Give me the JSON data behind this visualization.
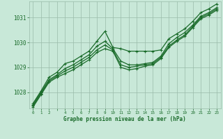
{
  "title": "Graphe pression niveau de la mer (hPa)",
  "bg_color": "#c8e8d8",
  "plot_bg_color": "#c8e8d8",
  "grid_color": "#99bbaa",
  "line_color": "#1a6b2a",
  "xlim": [
    -0.5,
    23.5
  ],
  "ylim": [
    1027.35,
    1031.65
  ],
  "yticks": [
    1028,
    1029,
    1030,
    1031
  ],
  "xticks": [
    0,
    1,
    2,
    3,
    4,
    5,
    6,
    7,
    8,
    9,
    10,
    11,
    12,
    13,
    14,
    15,
    16,
    17,
    18,
    19,
    20,
    21,
    22,
    23
  ],
  "xtick_labels": [
    "0",
    "1",
    "2",
    "",
    "4",
    "5",
    "6",
    "7",
    "8",
    "9",
    "10",
    "11",
    "12",
    "13",
    "14",
    "15",
    "16",
    "17",
    "18",
    "19",
    "20",
    "21",
    "22",
    "23"
  ],
  "series": [
    [
      1027.55,
      1028.05,
      1028.6,
      1028.8,
      1029.15,
      1029.25,
      1029.45,
      1029.65,
      1030.05,
      1030.45,
      1029.8,
      1029.75,
      1029.65,
      1029.65,
      1029.65,
      1029.65,
      1029.7,
      1030.15,
      1030.35,
      1030.55,
      1030.85,
      1031.2,
      1031.35,
      1031.55
    ],
    [
      1027.5,
      1028.0,
      1028.5,
      1028.7,
      1028.95,
      1029.1,
      1029.3,
      1029.5,
      1029.85,
      1030.05,
      1029.75,
      1029.25,
      1029.1,
      1029.1,
      1029.15,
      1029.2,
      1029.45,
      1029.95,
      1030.2,
      1030.4,
      1030.7,
      1031.05,
      1031.2,
      1031.4
    ],
    [
      1027.45,
      1027.95,
      1028.45,
      1028.65,
      1028.85,
      1029.0,
      1029.2,
      1029.4,
      1029.7,
      1029.9,
      1029.7,
      1029.1,
      1029.0,
      1029.05,
      1029.1,
      1029.15,
      1029.4,
      1029.85,
      1030.1,
      1030.3,
      1030.65,
      1031.0,
      1031.15,
      1031.35
    ],
    [
      1027.4,
      1027.9,
      1028.4,
      1028.6,
      1028.75,
      1028.9,
      1029.1,
      1029.3,
      1029.6,
      1029.75,
      1029.65,
      1029.0,
      1028.9,
      1028.95,
      1029.05,
      1029.1,
      1029.35,
      1029.8,
      1030.05,
      1030.25,
      1030.6,
      1030.95,
      1031.1,
      1031.3
    ]
  ]
}
